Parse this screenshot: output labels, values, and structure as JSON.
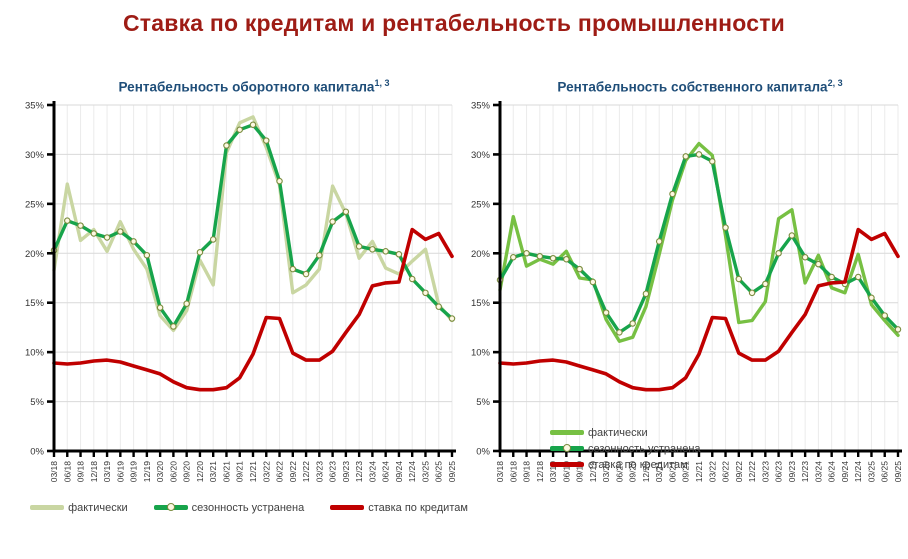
{
  "page_title": "Ставка по кредитам и рентабельность промышленности",
  "colors": {
    "title": "#9e1c15",
    "chart_title": "#1f4e79",
    "axis": "#000000",
    "grid_h": "#d9d9d9",
    "grid_v": "#ebebeb",
    "tick_label": "#333333",
    "legend_text": "#404040",
    "marker_fill": "#fdf8e2",
    "marker_stroke": "#7a8c3f",
    "background": "#ffffff"
  },
  "chart_data": [
    {
      "type": "line",
      "title": "Рентабельность оборотного капитала",
      "title_superscript": "1, 3",
      "legend_position": "bottom",
      "grid": true,
      "ylim": [
        0,
        35
      ],
      "ytick_labels": [
        "0%",
        "5%",
        "10%",
        "15%",
        "20%",
        "25%",
        "30%",
        "35%"
      ],
      "categories": [
        "03/18",
        "06/18",
        "09/18",
        "12/18",
        "03/19",
        "06/19",
        "09/19",
        "12/19",
        "03/20",
        "06/20",
        "09/20",
        "12/20",
        "03/21",
        "06/21",
        "09/21",
        "12/21",
        "03/22",
        "06/22",
        "09/22",
        "12/22",
        "03/23",
        "06/23",
        "09/23",
        "12/23",
        "03/24",
        "06/24",
        "09/24",
        "12/24",
        "03/25",
        "06/25",
        "09/25"
      ],
      "series": [
        {
          "name": "фактически",
          "color": "#c9d6a2",
          "marker": false,
          "values": [
            18.3,
            27.0,
            21.3,
            22.4,
            20.2,
            23.2,
            20.4,
            18.4,
            13.7,
            12.2,
            14.2,
            19.3,
            16.8,
            30.2,
            33.2,
            33.8,
            30.7,
            26.9,
            16.0,
            16.8,
            18.4,
            26.8,
            24.0,
            19.5,
            21.2,
            18.5,
            17.9,
            19.2,
            20.4,
            14.8,
            13.2
          ]
        },
        {
          "name": "сезонность устранена",
          "color": "#17a44b",
          "marker": true,
          "values": [
            20.3,
            23.3,
            22.8,
            22.0,
            21.6,
            22.2,
            21.2,
            19.8,
            14.5,
            12.6,
            14.9,
            20.1,
            21.4,
            30.9,
            32.5,
            33.0,
            31.4,
            27.3,
            18.4,
            17.9,
            19.8,
            23.2,
            24.2,
            20.7,
            20.4,
            20.2,
            19.9,
            17.4,
            16.0,
            14.6,
            13.4
          ]
        },
        {
          "name": "ставка по кредитам",
          "color": "#c00000",
          "marker": false,
          "values": [
            8.9,
            8.8,
            8.9,
            9.1,
            9.2,
            9.0,
            8.6,
            8.2,
            7.8,
            7.0,
            6.4,
            6.2,
            6.2,
            6.4,
            7.4,
            9.8,
            13.5,
            13.4,
            9.9,
            9.2,
            9.2,
            10.1,
            12.0,
            13.8,
            16.7,
            17.0,
            17.1,
            22.4,
            21.4,
            22.0,
            19.7
          ]
        }
      ]
    },
    {
      "type": "line",
      "title": "Рентабельность собственного капитала",
      "title_superscript": "2, 3",
      "legend_position": "inside-bottom-left",
      "grid": true,
      "ylim": [
        0,
        35
      ],
      "ytick_labels": [
        "0%",
        "5%",
        "10%",
        "15%",
        "20%",
        "25%",
        "30%",
        "35%"
      ],
      "categories": [
        "03/18",
        "06/18",
        "09/18",
        "12/18",
        "03/19",
        "06/19",
        "09/19",
        "12/19",
        "03/20",
        "06/20",
        "09/20",
        "12/20",
        "03/21",
        "06/21",
        "09/21",
        "12/21",
        "03/22",
        "06/22",
        "09/22",
        "12/22",
        "03/23",
        "06/23",
        "09/23",
        "12/23",
        "03/24",
        "06/24",
        "09/24",
        "12/24",
        "03/25",
        "06/25",
        "09/25"
      ],
      "series": [
        {
          "name": "фактически",
          "color": "#77c043",
          "marker": false,
          "values": [
            16.3,
            23.7,
            18.7,
            19.4,
            18.9,
            20.2,
            17.5,
            17.3,
            13.3,
            11.1,
            11.5,
            14.6,
            19.9,
            25.4,
            29.4,
            31.1,
            29.9,
            21.8,
            13.0,
            13.2,
            15.1,
            23.5,
            24.4,
            17.0,
            19.8,
            16.5,
            16.0,
            19.9,
            14.8,
            13.2,
            11.7
          ]
        },
        {
          "name": "сезонность устранена",
          "color": "#17a44b",
          "marker": true,
          "values": [
            17.3,
            19.6,
            20.0,
            19.7,
            19.5,
            19.4,
            18.4,
            17.1,
            14.0,
            12.0,
            12.9,
            15.9,
            21.2,
            26.0,
            29.8,
            30.0,
            29.3,
            22.6,
            17.4,
            16.0,
            16.9,
            20.0,
            21.8,
            19.6,
            18.9,
            17.6,
            16.9,
            17.6,
            15.5,
            13.7,
            12.3
          ]
        },
        {
          "name": "ставка по кредитам",
          "color": "#c00000",
          "marker": false,
          "values": [
            8.9,
            8.8,
            8.9,
            9.1,
            9.2,
            9.0,
            8.6,
            8.2,
            7.8,
            7.0,
            6.4,
            6.2,
            6.2,
            6.4,
            7.4,
            9.8,
            13.5,
            13.4,
            9.9,
            9.2,
            9.2,
            10.1,
            12.0,
            13.8,
            16.7,
            17.0,
            17.1,
            22.4,
            21.4,
            22.0,
            19.7
          ]
        }
      ]
    }
  ]
}
